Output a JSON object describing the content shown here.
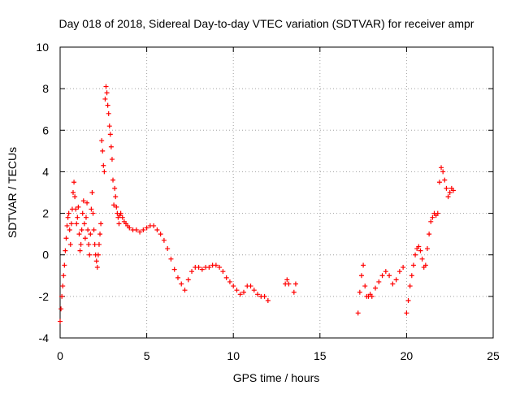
{
  "chart_data": {
    "type": "scatter",
    "title": "Day 018 of 2018, Sidereal Day-to-day VTEC variation (SDTVAR) for receiver ampr",
    "xlabel": "GPS time / hours",
    "ylabel": "SDTVAR / TECUs",
    "xlim": [
      0,
      25
    ],
    "ylim": [
      -4,
      10
    ],
    "xticks": [
      0,
      5,
      10,
      15,
      20,
      25
    ],
    "xtick_labels": [
      "0",
      "5",
      "10",
      "15",
      "20",
      "25"
    ],
    "yticks": [
      -4,
      -2,
      0,
      2,
      4,
      6,
      8,
      10
    ],
    "ytick_labels": [
      "-4",
      "-2",
      "0",
      "2",
      "4",
      "6",
      "8",
      "10"
    ],
    "grid": true,
    "marker": "+",
    "series": [
      {
        "name": "SDTVAR",
        "color": "#ff0000",
        "x": [
          0.0,
          0.05,
          0.1,
          0.15,
          0.2,
          0.25,
          0.3,
          0.35,
          0.4,
          0.45,
          0.5,
          0.55,
          0.6,
          0.65,
          0.7,
          0.75,
          0.8,
          0.85,
          0.9,
          0.95,
          1.0,
          1.05,
          1.1,
          1.15,
          1.2,
          1.25,
          1.3,
          1.35,
          1.4,
          1.45,
          1.5,
          1.55,
          1.6,
          1.65,
          1.7,
          1.75,
          1.8,
          1.85,
          1.9,
          1.95,
          2.0,
          2.05,
          2.1,
          2.15,
          2.2,
          2.25,
          2.3,
          2.35,
          2.4,
          2.45,
          2.5,
          2.55,
          2.6,
          2.65,
          2.7,
          2.75,
          2.8,
          2.85,
          2.9,
          2.95,
          3.0,
          3.05,
          3.1,
          3.15,
          3.2,
          3.25,
          3.3,
          3.35,
          3.4,
          3.45,
          3.5,
          3.6,
          3.7,
          3.8,
          3.9,
          4.0,
          4.2,
          4.4,
          4.6,
          4.8,
          5.0,
          5.2,
          5.4,
          5.6,
          5.8,
          6.0,
          6.2,
          6.4,
          6.6,
          6.8,
          7.0,
          7.2,
          7.4,
          7.6,
          7.8,
          8.0,
          8.2,
          8.4,
          8.6,
          8.8,
          9.0,
          9.2,
          9.4,
          9.6,
          9.8,
          10.0,
          10.2,
          10.4,
          10.6,
          10.8,
          11.0,
          11.2,
          11.4,
          11.6,
          11.8,
          12.0,
          13.0,
          13.1,
          13.2,
          13.5,
          13.6,
          17.2,
          17.3,
          17.4,
          17.5,
          17.6,
          17.7,
          17.8,
          17.9,
          18.0,
          18.2,
          18.4,
          18.6,
          18.8,
          19.0,
          19.2,
          19.4,
          19.6,
          19.8,
          20.0,
          20.1,
          20.2,
          20.3,
          20.4,
          20.5,
          20.6,
          20.7,
          20.8,
          20.9,
          21.0,
          21.1,
          21.2,
          21.3,
          21.4,
          21.5,
          21.6,
          21.7,
          21.8,
          21.9,
          22.0,
          22.1,
          22.2,
          22.3,
          22.4,
          22.5,
          22.6,
          22.7
        ],
        "y": [
          -3.2,
          -2.6,
          -2.0,
          -1.5,
          -1.0,
          -0.5,
          0.2,
          0.8,
          1.4,
          1.8,
          2.0,
          1.2,
          0.5,
          1.5,
          2.2,
          3.0,
          3.5,
          2.8,
          2.2,
          1.5,
          1.8,
          2.3,
          1.0,
          0.2,
          0.5,
          1.2,
          2.0,
          2.6,
          1.5,
          0.8,
          1.8,
          2.5,
          1.2,
          0.5,
          0.0,
          1.0,
          2.2,
          3.0,
          2.0,
          1.2,
          0.5,
          0.0,
          -0.3,
          -0.6,
          0.0,
          0.5,
          1.0,
          1.5,
          5.5,
          5.0,
          4.3,
          4.0,
          7.5,
          8.1,
          7.8,
          7.2,
          6.8,
          6.2,
          5.8,
          5.2,
          4.6,
          3.6,
          2.4,
          3.2,
          2.8,
          2.3,
          2.0,
          1.8,
          1.5,
          1.9,
          2.0,
          1.8,
          1.6,
          1.5,
          1.4,
          1.3,
          1.2,
          1.2,
          1.1,
          1.2,
          1.3,
          1.4,
          1.4,
          1.2,
          1.0,
          0.7,
          0.3,
          -0.2,
          -0.7,
          -1.1,
          -1.4,
          -1.7,
          -1.2,
          -0.8,
          -0.6,
          -0.6,
          -0.7,
          -0.6,
          -0.6,
          -0.5,
          -0.5,
          -0.6,
          -0.8,
          -1.1,
          -1.3,
          -1.5,
          -1.7,
          -1.9,
          -1.8,
          -1.5,
          -1.5,
          -1.7,
          -1.9,
          -2.0,
          -2.0,
          -2.2,
          -1.4,
          -1.2,
          -1.4,
          -1.8,
          -1.4,
          -2.8,
          -1.8,
          -1.0,
          -0.5,
          -1.5,
          -2.0,
          -2.0,
          -1.9,
          -2.0,
          -1.6,
          -1.3,
          -1.0,
          -0.8,
          -1.0,
          -1.4,
          -1.2,
          -0.8,
          -0.6,
          -2.8,
          -2.2,
          -1.5,
          -1.0,
          -0.5,
          0.0,
          0.3,
          0.4,
          0.2,
          -0.2,
          -0.6,
          -0.5,
          0.3,
          1.0,
          1.6,
          1.8,
          2.0,
          1.9,
          2.0,
          3.5,
          4.2,
          4.0,
          3.6,
          3.2,
          2.8,
          3.0,
          3.2,
          3.1
        ]
      }
    ]
  }
}
